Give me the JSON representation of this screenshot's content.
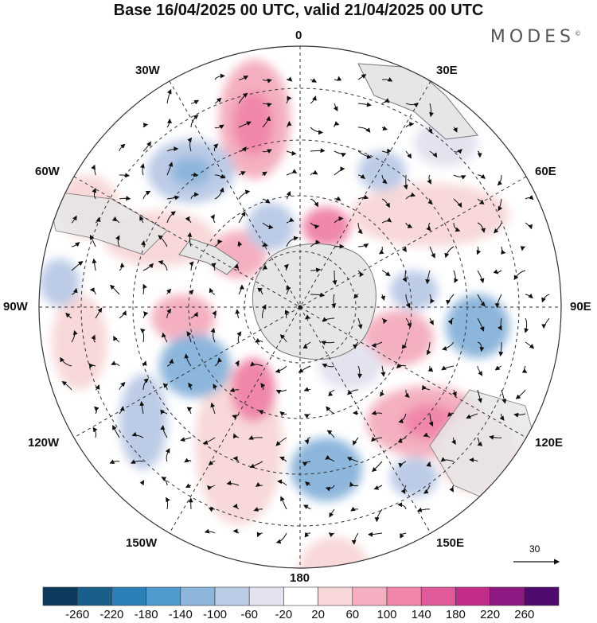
{
  "title": "Base 16/04/2025 00 UTC, valid 21/04/2025 00 UTC",
  "brand": "MODES",
  "brand_mark": "©",
  "longitude_labels": {
    "top": "0",
    "top_right": "30E",
    "right_upper": "60E",
    "right": "90E",
    "right_lower": "120E",
    "bottom_right": "150E",
    "bottom": "180",
    "bottom_left": "150W",
    "left_lower": "120W",
    "left": "90W",
    "left_upper": "60W",
    "top_left": "30W"
  },
  "vector_scale": "30",
  "colorbar": {
    "labels": [
      "-260",
      "-220",
      "-180",
      "-140",
      "-100",
      "-60",
      "-20",
      "20",
      "60",
      "100",
      "140",
      "180",
      "220",
      "260"
    ],
    "colors": [
      "#0d3a5c",
      "#1a5e8c",
      "#2c7fb8",
      "#4f9bcf",
      "#8db6dc",
      "#bccbe6",
      "#e3e3f0",
      "#ffffff",
      "#f8d8d8",
      "#f4b0c0",
      "#f087aa",
      "#e05a9a",
      "#c42c8a",
      "#8c1a82",
      "#4e0a6e"
    ]
  },
  "colors": {
    "land": "#e6e6e6",
    "coast": "#777777",
    "grid": "#333333"
  }
}
